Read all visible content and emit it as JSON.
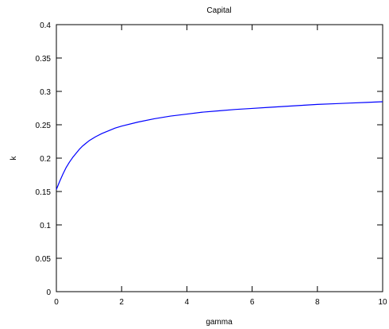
{
  "chart_data": {
    "type": "line",
    "title": "Capital",
    "xlabel": "gamma",
    "ylabel": "k",
    "xlim": [
      0,
      10
    ],
    "ylim": [
      0,
      0.4
    ],
    "grid": false,
    "x_ticks": [
      0,
      2,
      4,
      6,
      8,
      10
    ],
    "x_tick_labels": [
      "0",
      "2",
      "4",
      "6",
      "8",
      "10"
    ],
    "y_ticks": [
      0,
      0.05,
      0.1,
      0.15,
      0.2,
      0.25,
      0.3,
      0.35,
      0.4
    ],
    "y_tick_labels": [
      "0",
      "0.05",
      "0.1",
      "0.15",
      "0.2",
      "0.25",
      "0.3",
      "0.35",
      "0.4"
    ],
    "series": [
      {
        "color": "#0000ff",
        "x": [
          0,
          0.1,
          0.2,
          0.3,
          0.4,
          0.5,
          0.6,
          0.7,
          0.8,
          0.9,
          1.0,
          1.2,
          1.4,
          1.6,
          1.8,
          2.0,
          2.5,
          3.0,
          3.5,
          4.0,
          4.5,
          5.0,
          5.5,
          6.0,
          6.5,
          7.0,
          7.5,
          8.0,
          8.5,
          9.0,
          9.5,
          10.0
        ],
        "y": [
          0.153,
          0.165,
          0.176,
          0.186,
          0.194,
          0.201,
          0.207,
          0.213,
          0.218,
          0.222,
          0.226,
          0.232,
          0.237,
          0.241,
          0.245,
          0.248,
          0.254,
          0.259,
          0.263,
          0.266,
          0.269,
          0.271,
          0.273,
          0.2745,
          0.276,
          0.2775,
          0.279,
          0.2805,
          0.2815,
          0.2825,
          0.2835,
          0.2845
        ]
      }
    ]
  }
}
